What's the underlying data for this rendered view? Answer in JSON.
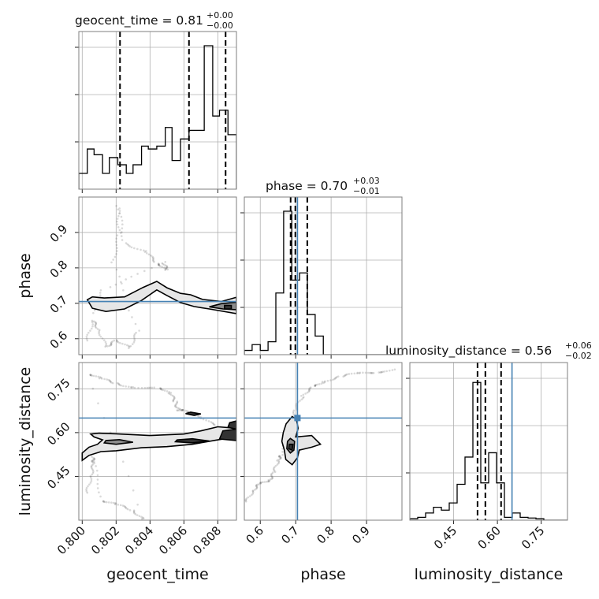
{
  "chart_data": {
    "type": "corner",
    "parameters": [
      "geocent_time",
      "phase",
      "luminosity_distance"
    ],
    "truths": {
      "phase": 0.705,
      "luminosity_distance": 0.65
    },
    "titles": [
      {
        "param": "geocent_time",
        "text": "geocent_time = 0.81",
        "plus": "+0.00",
        "minus": "−0.00"
      },
      {
        "param": "phase",
        "text": "phase = 0.70",
        "plus": "+0.03",
        "minus": "−0.01"
      },
      {
        "param": "luminosity_distance",
        "text": "luminosity_distance = 0.56",
        "plus": "+0.06",
        "minus": "−0.02"
      }
    ],
    "axes": {
      "geocent_time": {
        "range": [
          0.7998,
          0.8091
        ],
        "ticks": [
          "0.800",
          "0.802",
          "0.804",
          "0.806",
          "0.808"
        ],
        "tick_values": [
          0.8,
          0.802,
          0.804,
          0.806,
          0.808
        ]
      },
      "phase": {
        "range": [
          0.555,
          1.0
        ],
        "ticks": [
          "0.6",
          "0.7",
          "0.8",
          "0.9"
        ],
        "tick_values": [
          0.6,
          0.7,
          0.8,
          0.9
        ]
      },
      "luminosity_distance": {
        "range": [
          0.3,
          0.84
        ],
        "ticks": [
          "0.45",
          "0.60",
          "0.75"
        ],
        "tick_values": [
          0.45,
          0.6,
          0.75
        ]
      }
    },
    "histograms": {
      "geocent_time": {
        "bin_edges": [
          0.7998,
          0.8003,
          0.8007,
          0.8012,
          0.8016,
          0.8021,
          0.8026,
          0.803,
          0.8035,
          0.8039,
          0.8044,
          0.8049,
          0.8053,
          0.8058,
          0.8063,
          0.8067,
          0.8072,
          0.8077,
          0.8081,
          0.8086,
          0.8091
        ],
        "counts": [
          0.11,
          0.28,
          0.24,
          0.11,
          0.22,
          0.17,
          0.11,
          0.17,
          0.3,
          0.28,
          0.3,
          0.43,
          0.2,
          0.35,
          0.41,
          0.41,
          1.0,
          0.51,
          0.55,
          0.38
        ]
      },
      "phase": {
        "bin_edges": [
          0.555,
          0.577,
          0.6,
          0.622,
          0.644,
          0.666,
          0.689,
          0.711,
          0.733,
          0.755,
          0.778,
          0.8,
          0.822,
          0.844,
          0.867,
          0.889,
          0.911,
          0.933,
          0.955,
          0.978,
          1.0
        ],
        "counts": [
          0.03,
          0.07,
          0.03,
          0.09,
          0.43,
          1.0,
          0.52,
          0.57,
          0.28,
          0.13,
          0,
          0,
          0,
          0,
          0,
          0,
          0,
          0,
          0,
          0
        ]
      },
      "luminosity_distance": {
        "bin_edges": [
          0.3,
          0.327,
          0.354,
          0.381,
          0.408,
          0.435,
          0.462,
          0.489,
          0.516,
          0.543,
          0.57,
          0.597,
          0.624,
          0.651,
          0.678,
          0.705,
          0.732,
          0.759,
          0.786,
          0.813,
          0.84
        ],
        "counts": [
          0.01,
          0.02,
          0.05,
          0.09,
          0.07,
          0.12,
          0.25,
          0.44,
          0.96,
          0.26,
          0.47,
          0.26,
          0.02,
          0.05,
          0.02,
          0.015,
          0.01,
          0,
          0,
          0
        ]
      }
    },
    "quantiles": {
      "geocent_time": [
        0.80223,
        0.8063,
        0.80846
      ],
      "phase": [
        0.6857,
        0.699,
        0.7327
      ],
      "luminosity_distance": [
        0.5319,
        0.5587,
        0.6126
      ]
    },
    "contours": {
      "geocent_time-phase": [
        [
          [
            0.8003,
            0.71
          ],
          [
            0.8006,
            0.686
          ],
          [
            0.8014,
            0.677
          ],
          [
            0.8025,
            0.684
          ],
          [
            0.8035,
            0.708
          ],
          [
            0.8044,
            0.738
          ],
          [
            0.805,
            0.722
          ],
          [
            0.8058,
            0.702
          ],
          [
            0.8066,
            0.691
          ],
          [
            0.8075,
            0.684
          ],
          [
            0.8091,
            0.671
          ],
          [
            0.8091,
            0.717
          ],
          [
            0.8082,
            0.705
          ],
          [
            0.8071,
            0.711
          ],
          [
            0.8064,
            0.724
          ],
          [
            0.8058,
            0.728
          ],
          [
            0.805,
            0.744
          ],
          [
            0.8044,
            0.762
          ],
          [
            0.8036,
            0.745
          ],
          [
            0.8025,
            0.718
          ],
          [
            0.8013,
            0.715
          ],
          [
            0.8006,
            0.718
          ]
        ],
        [
          [
            0.8075,
            0.69
          ],
          [
            0.8083,
            0.684
          ],
          [
            0.8091,
            0.682
          ],
          [
            0.8091,
            0.703
          ],
          [
            0.8082,
            0.699
          ]
        ],
        [
          [
            0.8084,
            0.684
          ],
          [
            0.8088,
            0.684
          ],
          [
            0.8088,
            0.694
          ],
          [
            0.8084,
            0.694
          ]
        ]
      ],
      "geocent_time-luminosity_distance": [
        [
          [
            0.8,
            0.505
          ],
          [
            0.8004,
            0.522
          ],
          [
            0.8011,
            0.535
          ],
          [
            0.802,
            0.538
          ],
          [
            0.8035,
            0.548
          ],
          [
            0.805,
            0.552
          ],
          [
            0.8065,
            0.56
          ],
          [
            0.808,
            0.575
          ],
          [
            0.8091,
            0.585
          ],
          [
            0.8091,
            0.615
          ],
          [
            0.808,
            0.62
          ],
          [
            0.807,
            0.606
          ],
          [
            0.806,
            0.595
          ],
          [
            0.804,
            0.59
          ],
          [
            0.802,
            0.596
          ],
          [
            0.801,
            0.598
          ],
          [
            0.8005,
            0.595
          ],
          [
            0.8007,
            0.585
          ],
          [
            0.8012,
            0.575
          ],
          [
            0.8009,
            0.56
          ],
          [
            0.8004,
            0.55
          ],
          [
            0.8,
            0.53
          ]
        ],
        [
          [
            0.8013,
            0.565
          ],
          [
            0.802,
            0.56
          ],
          [
            0.803,
            0.567
          ],
          [
            0.8022,
            0.576
          ],
          [
            0.8014,
            0.573
          ]
        ],
        [
          [
            0.8055,
            0.569
          ],
          [
            0.8065,
            0.565
          ],
          [
            0.8075,
            0.571
          ],
          [
            0.8065,
            0.579
          ],
          [
            0.8056,
            0.575
          ]
        ],
        [
          [
            0.8081,
            0.578
          ],
          [
            0.8091,
            0.573
          ],
          [
            0.8091,
            0.612
          ],
          [
            0.8083,
            0.606
          ]
        ],
        [
          [
            0.8061,
            0.665
          ],
          [
            0.8064,
            0.67
          ],
          [
            0.807,
            0.664
          ],
          [
            0.8066,
            0.659
          ]
        ],
        [
          [
            0.8086,
            0.618
          ],
          [
            0.8091,
            0.612
          ],
          [
            0.8091,
            0.64
          ],
          [
            0.8087,
            0.634
          ]
        ]
      ],
      "phase-luminosity_distance": [
        [
          [
            0.668,
            0.54
          ],
          [
            0.672,
            0.508
          ],
          [
            0.69,
            0.49
          ],
          [
            0.705,
            0.514
          ],
          [
            0.71,
            0.54
          ],
          [
            0.745,
            0.55
          ],
          [
            0.77,
            0.56
          ],
          [
            0.745,
            0.59
          ],
          [
            0.7,
            0.585
          ],
          [
            0.707,
            0.615
          ],
          [
            0.702,
            0.645
          ],
          [
            0.69,
            0.655
          ],
          [
            0.673,
            0.63
          ],
          [
            0.665,
            0.6
          ],
          [
            0.661,
            0.57
          ]
        ],
        [
          [
            0.675,
            0.545
          ],
          [
            0.685,
            0.53
          ],
          [
            0.695,
            0.54
          ],
          [
            0.697,
            0.57
          ],
          [
            0.685,
            0.58
          ],
          [
            0.677,
            0.57
          ]
        ],
        [
          [
            0.68,
            0.545
          ],
          [
            0.69,
            0.54
          ],
          [
            0.692,
            0.56
          ],
          [
            0.682,
            0.56
          ]
        ]
      ]
    },
    "scatter_trails": {
      "geocent_time-phase": [
        [
          0.8003,
          0.6
        ],
        [
          0.8006,
          0.65
        ],
        [
          0.801,
          0.62
        ],
        [
          0.8014,
          0.58
        ],
        [
          0.802,
          0.6
        ],
        [
          0.8028,
          0.57
        ],
        [
          0.8033,
          0.62
        ],
        [
          0.8018,
          0.82
        ],
        [
          0.8022,
          0.9
        ],
        [
          0.8021,
          0.97
        ],
        [
          0.8025,
          0.87
        ],
        [
          0.8038,
          0.85
        ],
        [
          0.8044,
          0.81
        ],
        [
          0.805,
          0.79
        ],
        [
          0.8048,
          0.82
        ],
        [
          0.8012,
          0.74
        ],
        [
          0.8007,
          0.66
        ]
      ],
      "geocent_time-luminosity_distance": [
        [
          0.8003,
          0.4
        ],
        [
          0.8005,
          0.45
        ],
        [
          0.8007,
          0.49
        ],
        [
          0.8006,
          0.52
        ],
        [
          0.8012,
          0.37
        ],
        [
          0.802,
          0.35
        ],
        [
          0.803,
          0.33
        ],
        [
          0.8036,
          0.31
        ],
        [
          0.8004,
          0.8
        ],
        [
          0.8011,
          0.78
        ],
        [
          0.802,
          0.77
        ],
        [
          0.803,
          0.76
        ],
        [
          0.8045,
          0.75
        ],
        [
          0.8052,
          0.73
        ],
        [
          0.8055,
          0.71
        ],
        [
          0.8057,
          0.68
        ],
        [
          0.806,
          0.67
        ],
        [
          0.807,
          0.65
        ],
        [
          0.808,
          0.63
        ]
      ],
      "phase-luminosity_distance": [
        [
          0.56,
          0.37
        ],
        [
          0.58,
          0.4
        ],
        [
          0.6,
          0.42
        ],
        [
          0.625,
          0.44
        ],
        [
          0.64,
          0.47
        ],
        [
          0.65,
          0.5
        ],
        [
          0.66,
          0.52
        ],
        [
          0.69,
          0.64
        ],
        [
          0.7,
          0.68
        ],
        [
          0.72,
          0.72
        ],
        [
          0.75,
          0.76
        ],
        [
          0.78,
          0.78
        ],
        [
          0.83,
          0.79
        ],
        [
          0.88,
          0.8
        ],
        [
          0.93,
          0.81
        ],
        [
          0.98,
          0.82
        ]
      ]
    }
  }
}
